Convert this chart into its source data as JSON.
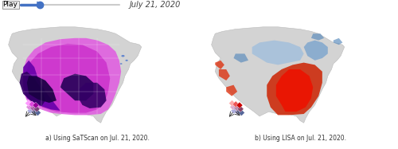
{
  "play_button_text": "Play",
  "date_text": "July 21, 2020",
  "caption_a": "a) Using SaTScan on Jul. 21, 2020.",
  "caption_b": "b) Using LISA on Jul. 21, 2020.",
  "background_color": "#ffffff",
  "slider_color": "#4472c4",
  "play_button_bg": "#eeeeee",
  "play_button_border": "#999999",
  "figsize": [
    5.0,
    1.87
  ],
  "dpi": 100,
  "caption_fontsize": 5.5,
  "date_fontsize": 7,
  "play_fontsize": 6.5,
  "map1_bg": "#d0d0d0",
  "map2_bg": "#d0d0d0",
  "state_edge": "#ffffff",
  "county_edge": "#e8e8e8"
}
